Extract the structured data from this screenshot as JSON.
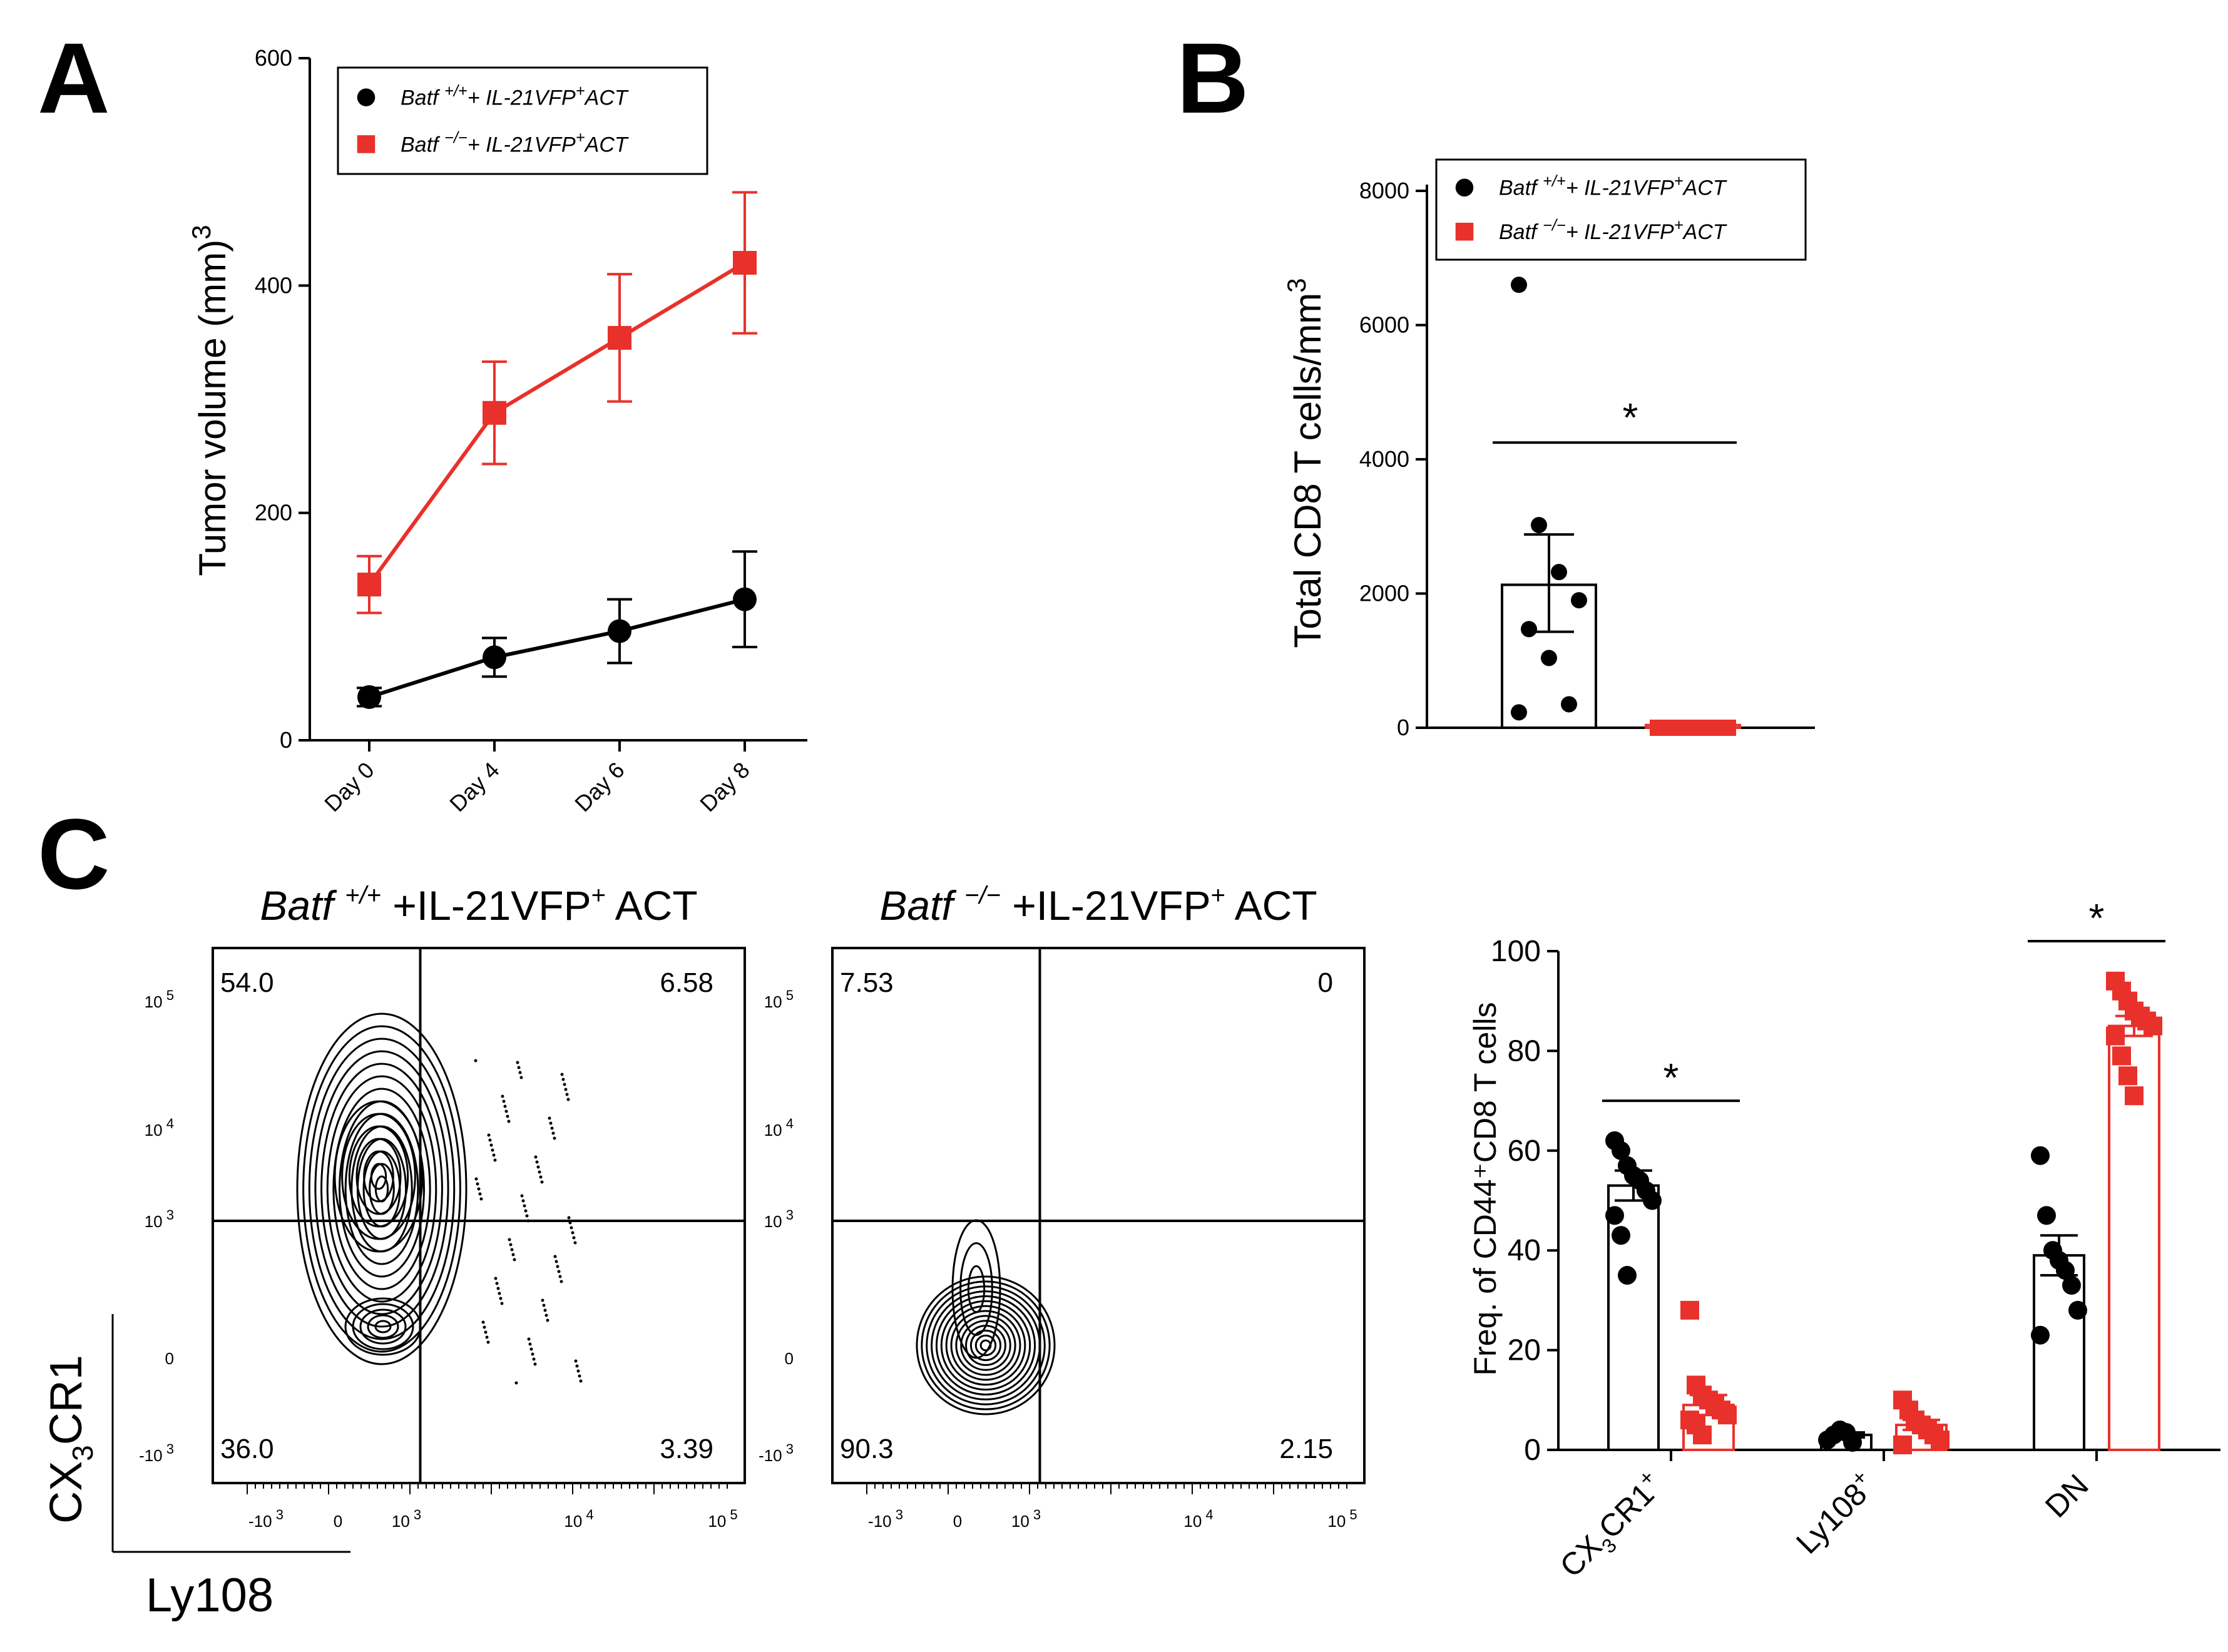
{
  "colors": {
    "black": "#000000",
    "red": "#e8312a"
  },
  "panel_labels": [
    "A",
    "B",
    "C"
  ],
  "legend": {
    "black_prefix": "Batf",
    "black_sup": "+/+",
    "black_suffix": "+ IL-21VFP",
    "black_tail": "ACT",
    "red_prefix": "Batf",
    "red_sup": "−/−",
    "red_suffix": "+ IL-21VFP",
    "red_tail": "ACT",
    "plus": "+"
  },
  "flow": {
    "left": {
      "title_italic": "Batf",
      "title_sup": "+/+",
      "title_rest": "+IL-21VFP",
      "title_sup2": "+",
      "title_end": " ACT",
      "quadrants": {
        "ul": "54.0",
        "ur": "6.58",
        "ll": "36.0",
        "lr": "3.39"
      }
    },
    "right": {
      "title_italic": "Batf",
      "title_sup": "−/−",
      "title_rest": "+IL-21VFP",
      "title_sup2": "+",
      "title_end": " ACT",
      "quadrants": {
        "ul": "7.53",
        "ur": "0",
        "ll": "90.3",
        "lr": "2.15"
      }
    },
    "y_axis_label_main": "CX",
    "y_axis_label_sub": "3",
    "y_axis_label_end": "CR1",
    "x_axis_label": "Ly108",
    "y_ticks": [
      {
        "base": "10",
        "exp": "5"
      },
      {
        "base": "10",
        "exp": "4"
      },
      {
        "base": "10",
        "exp": "3"
      },
      {
        "base": "0",
        "exp": ""
      },
      {
        "base": "-10",
        "exp": "3"
      }
    ],
    "x_ticks": [
      {
        "base": "-10",
        "exp": "3"
      },
      {
        "base": "0",
        "exp": ""
      },
      {
        "base": "10",
        "exp": "3"
      },
      {
        "base": "10",
        "exp": "4"
      },
      {
        "base": "10",
        "exp": "5"
      }
    ]
  },
  "chart_data": [
    {
      "panel": "A",
      "type": "line",
      "title": "",
      "xlabel": "",
      "ylabel": "Tumor volume (mm)",
      "ylabel_sup": "3",
      "categories": [
        "Day 0",
        "Day 4",
        "Day 6",
        "Day 8"
      ],
      "ylim": [
        0,
        600
      ],
      "yticks": [
        0,
        200,
        400,
        600
      ],
      "series": [
        {
          "name": "Batf +/+ + IL-21VFP+ACT",
          "color": "black",
          "marker": "circle",
          "values": [
            38,
            73,
            96,
            124
          ],
          "errors": [
            8,
            17,
            28,
            42
          ]
        },
        {
          "name": "Batf −/− + IL-21VFP+ACT",
          "color": "red",
          "marker": "square",
          "values": [
            137,
            288,
            354,
            420
          ],
          "errors": [
            25,
            45,
            56,
            62
          ]
        }
      ]
    },
    {
      "panel": "B",
      "type": "bar",
      "title": "",
      "ylabel": "Total CD8 T cells/mm",
      "ylabel_sup": "3",
      "ylim": [
        0,
        8000
      ],
      "yticks": [
        0,
        2000,
        4000,
        6000,
        8000
      ],
      "significance": "*",
      "series": [
        {
          "name": "Batf +/+ + IL-21VFP+ACT",
          "color": "black",
          "mean": 2130,
          "sem_low": 1430,
          "sem_high": 2880,
          "points": [
            6600,
            3020,
            2320,
            1900,
            1470,
            1040,
            350,
            230
          ]
        },
        {
          "name": "Batf −/− + IL-21VFP+ACT",
          "color": "red",
          "mean": 40,
          "sem_low": 0,
          "sem_high": 60,
          "points": [
            0,
            0,
            0,
            0,
            0,
            0,
            0,
            0
          ]
        }
      ]
    },
    {
      "panel": "C",
      "type": "bar",
      "title": "",
      "ylabel": "Freq. of CD44⁺CD8 T cells",
      "ylim": [
        0,
        100
      ],
      "yticks": [
        0,
        20,
        40,
        60,
        80,
        100
      ],
      "categories": [
        {
          "label": "CX",
          "sub": "3",
          "rest": "CR1",
          "sup": "+"
        },
        {
          "label": "Ly108",
          "sub": "",
          "rest": "",
          "sup": "+"
        },
        {
          "label": "DN",
          "sub": "",
          "rest": "",
          "sup": ""
        }
      ],
      "significance": [
        "*",
        "",
        "*"
      ],
      "series": [
        {
          "name": "Batf +/+",
          "color": "black",
          "means": [
            53,
            3,
            39
          ],
          "sem": [
            3,
            0.5,
            4
          ],
          "points": [
            [
              62,
              60,
              57,
              55,
              54,
              52,
              50,
              47,
              43,
              35
            ],
            [
              2,
              3,
              4,
              3.5,
              1.5
            ],
            [
              59,
              47,
              40,
              38,
              36,
              33,
              28,
              23
            ]
          ]
        },
        {
          "name": "Batf −/−",
          "color": "red",
          "means": [
            9,
            5,
            85
          ],
          "sem": [
            2,
            1,
            2
          ],
          "points": [
            [
              28,
              13,
              11,
              10,
              9,
              8,
              7,
              6,
              5,
              3
            ],
            [
              10,
              8,
              6,
              5,
              4,
              3,
              2,
              1
            ],
            [
              94,
              92,
              90,
              88,
              87,
              86,
              85,
              83,
              79,
              75,
              71
            ]
          ]
        }
      ]
    }
  ]
}
